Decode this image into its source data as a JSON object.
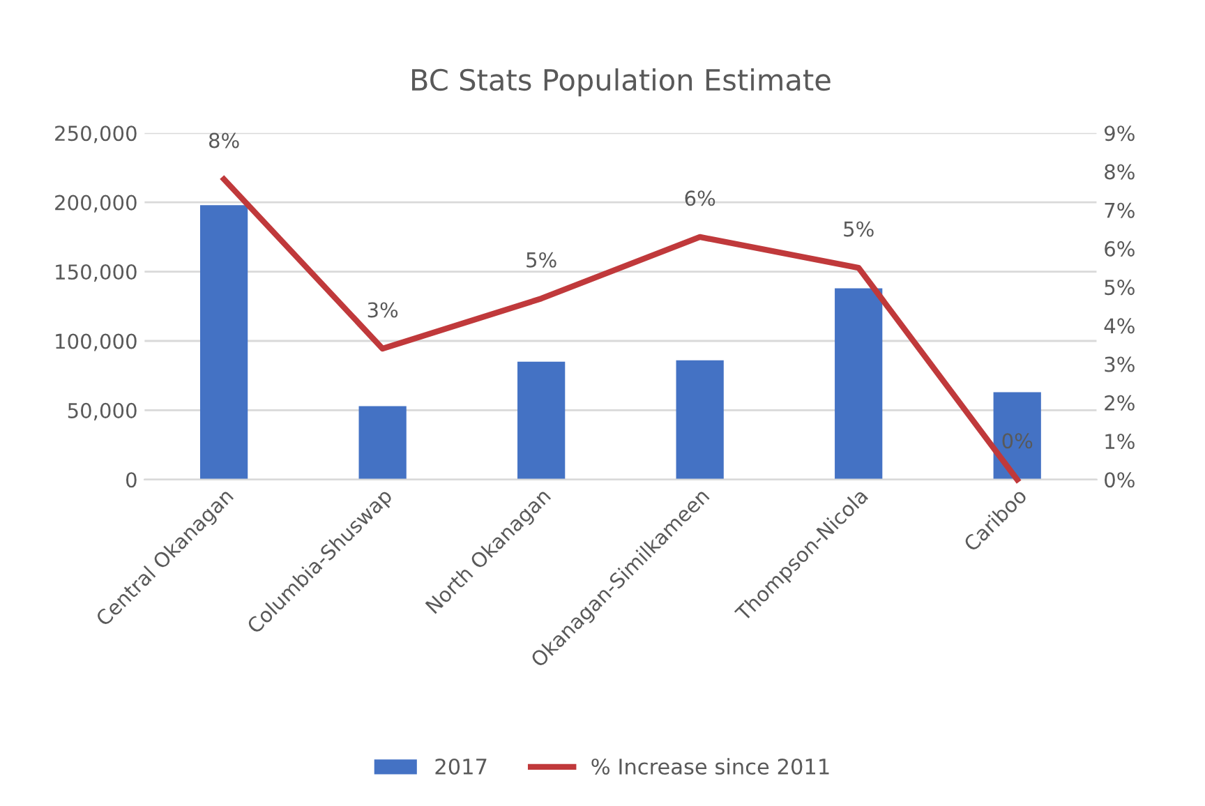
{
  "chart_data": {
    "type": "bar",
    "title": "BC Stats Population Estimate",
    "categories": [
      "Central Okanagan",
      "Columbia-Shuswap",
      "North Okanagan",
      "Okanagan-Similkameen",
      "Thompson-Nicola",
      "Cariboo"
    ],
    "series": [
      {
        "name": "2017",
        "color": "#4472c4",
        "values": [
          198000,
          53000,
          85000,
          86000,
          138000,
          63000
        ]
      },
      {
        "name": "% Increase since 2011",
        "type": "line",
        "axis": "y2",
        "color": "#c0393b",
        "values": [
          7.8,
          3.4,
          4.7,
          6.3,
          5.5,
          0
        ],
        "value_labels": [
          "8%",
          "3%",
          "5%",
          "6%",
          "5%",
          "0%"
        ]
      }
    ],
    "ylim": [
      0,
      250000
    ],
    "yticks": [
      {
        "value": 0,
        "label": "0"
      },
      {
        "value": 50000,
        "label": "50,000"
      },
      {
        "value": 100000,
        "label": "100,000"
      },
      {
        "value": 150000,
        "label": "150,000"
      },
      {
        "value": 200000,
        "label": "200,000"
      },
      {
        "value": 250000,
        "label": "250,000"
      }
    ],
    "y2lim": [
      0,
      9
    ],
    "y2ticks": [
      {
        "value": 0,
        "label": "0%"
      },
      {
        "value": 1,
        "label": "1%"
      },
      {
        "value": 2,
        "label": "2%"
      },
      {
        "value": 3,
        "label": "3%"
      },
      {
        "value": 4,
        "label": "4%"
      },
      {
        "value": 5,
        "label": "5%"
      },
      {
        "value": 6,
        "label": "6%"
      },
      {
        "value": 7,
        "label": "7%"
      },
      {
        "value": 8,
        "label": "8%"
      },
      {
        "value": 9,
        "label": "9%"
      }
    ],
    "grid": "y",
    "legend": "bottom",
    "marker": "none",
    "line_style": "solid"
  }
}
